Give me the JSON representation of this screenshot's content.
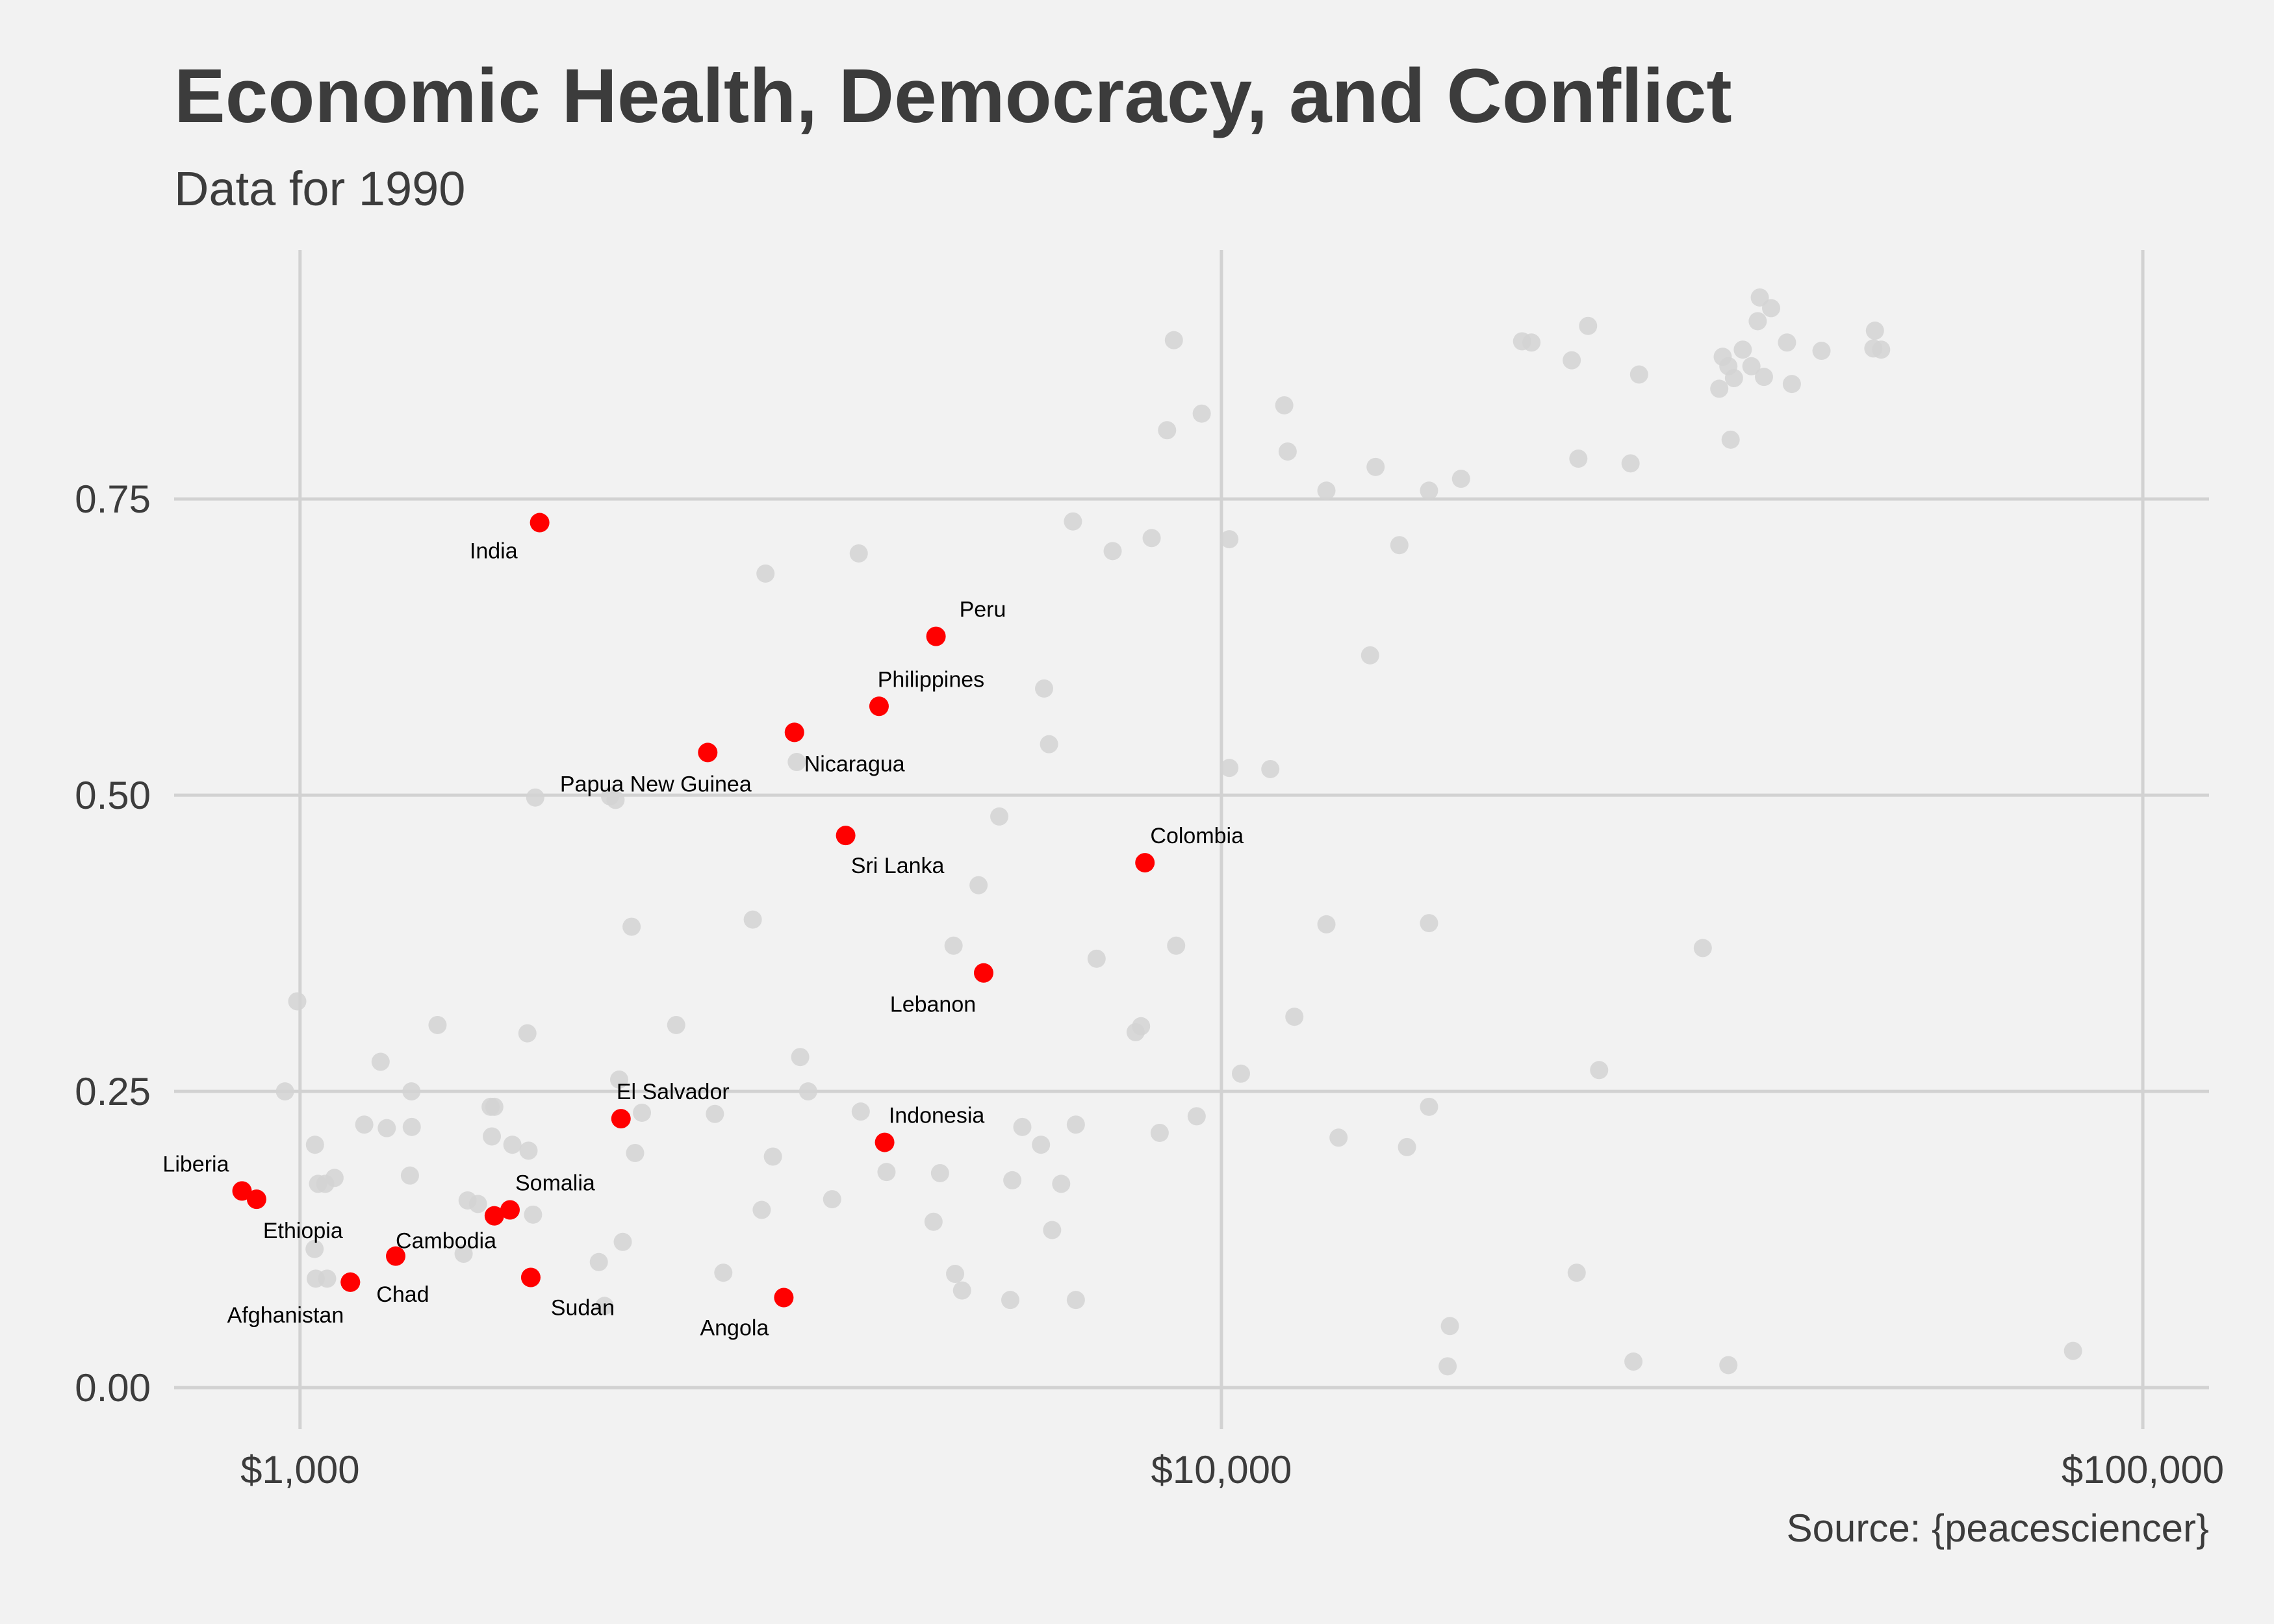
{
  "chart_data": {
    "type": "scatter",
    "title": "Economic Health, Democracy, and Conflict",
    "subtitle": "Data for 1990",
    "caption": "Source: {peacesciencer}",
    "xlabel": "",
    "ylabel": "",
    "x_scale": "log10",
    "xlim": [
      730,
      118000
    ],
    "ylim": [
      -0.035,
      0.96
    ],
    "x_ticks": [
      1000,
      10000,
      100000
    ],
    "x_tick_labels": [
      "$1,000",
      "$10,000",
      "$100,000"
    ],
    "y_ticks": [
      0,
      0.25,
      0.5,
      0.75
    ],
    "y_tick_labels": [
      "0.00",
      "0.25",
      "0.50",
      "0.75"
    ],
    "grid": true,
    "colors": {
      "background": "#f2f2f2",
      "grid": "#d2d2d2",
      "conflict": "#ff0000",
      "other": "#d3d3d3",
      "text": "#3c3c3c"
    },
    "series": [
      {
        "name": "",
        "color": "#d3d3d3",
        "points": [
          [
            993,
            0.326
          ],
          [
            963,
            0.25
          ],
          [
            1038,
            0.205
          ],
          [
            1046,
            0.172
          ],
          [
            1065,
            0.172
          ],
          [
            1090,
            0.177
          ],
          [
            1037,
            0.117
          ],
          [
            1040,
            0.092
          ],
          [
            1070,
            0.092
          ],
          [
            1174,
            0.222
          ],
          [
            1223,
            0.275
          ],
          [
            1242,
            0.219
          ],
          [
            1321,
            0.25
          ],
          [
            1322,
            0.22
          ],
          [
            1316,
            0.179
          ],
          [
            1410,
            0.306
          ],
          [
            1520,
            0.158
          ],
          [
            1560,
            0.155
          ],
          [
            1505,
            0.113
          ],
          [
            1610,
            0.237
          ],
          [
            1625,
            0.237
          ],
          [
            1615,
            0.212
          ],
          [
            1700,
            0.205
          ],
          [
            1770,
            0.2
          ],
          [
            1790,
            0.146
          ],
          [
            1765,
            0.299
          ],
          [
            1800,
            0.498
          ],
          [
            2170,
            0.499
          ],
          [
            2200,
            0.496
          ],
          [
            2290,
            0.389
          ],
          [
            2220,
            0.26
          ],
          [
            2350,
            0.232
          ],
          [
            2310,
            0.198
          ],
          [
            2240,
            0.123
          ],
          [
            2110,
            0.106
          ],
          [
            2140,
            0.069
          ],
          [
            2560,
            0.306
          ],
          [
            2820,
            0.231
          ],
          [
            2880,
            0.097
          ],
          [
            3100,
            0.395
          ],
          [
            3170,
            0.15
          ],
          [
            3260,
            0.195
          ],
          [
            3200,
            0.687
          ],
          [
            3460,
            0.528
          ],
          [
            3490,
            0.279
          ],
          [
            3560,
            0.25
          ],
          [
            3780,
            0.159
          ],
          [
            4060,
            0.233
          ],
          [
            4040,
            0.704
          ],
          [
            4330,
            0.182
          ],
          [
            4870,
            0.14
          ],
          [
            4950,
            0.181
          ],
          [
            5120,
            0.373
          ],
          [
            5140,
            0.096
          ],
          [
            5230,
            0.082
          ],
          [
            5450,
            0.424
          ],
          [
            5740,
            0.482
          ],
          [
            5930,
            0.175
          ],
          [
            5900,
            0.074
          ],
          [
            6080,
            0.22
          ],
          [
            6500,
            0.543
          ],
          [
            6550,
            0.133
          ],
          [
            6420,
            0.59
          ],
          [
            6370,
            0.205
          ],
          [
            6700,
            0.172
          ],
          [
            6950,
            0.222
          ],
          [
            6950,
            0.074
          ],
          [
            6900,
            0.731
          ],
          [
            7320,
            0.362
          ],
          [
            7620,
            0.706
          ],
          [
            8070,
            0.3
          ],
          [
            8180,
            0.305
          ],
          [
            8400,
            0.717
          ],
          [
            8570,
            0.215
          ],
          [
            8730,
            0.808
          ],
          [
            8880,
            0.884
          ],
          [
            8930,
            0.373
          ],
          [
            9520,
            0.822
          ],
          [
            9400,
            0.229
          ],
          [
            10200,
            0.716
          ],
          [
            10200,
            0.523
          ],
          [
            10500,
            0.265
          ],
          [
            11300,
            0.522
          ],
          [
            11700,
            0.829
          ],
          [
            11800,
            0.79
          ],
          [
            12000,
            0.313
          ],
          [
            13000,
            0.757
          ],
          [
            13000,
            0.391
          ],
          [
            13400,
            0.211
          ],
          [
            14500,
            0.618
          ],
          [
            14700,
            0.777
          ],
          [
            15600,
            0.711
          ],
          [
            15900,
            0.203
          ],
          [
            16800,
            0.757
          ],
          [
            16800,
            0.392
          ],
          [
            16800,
            0.237
          ],
          [
            18200,
            0.767
          ],
          [
            17700,
            0.052
          ],
          [
            17600,
            0.018
          ],
          [
            21200,
            0.883
          ],
          [
            21700,
            0.882
          ],
          [
            24000,
            0.867
          ],
          [
            24400,
            0.784
          ],
          [
            25000,
            0.896
          ],
          [
            24300,
            0.097
          ],
          [
            25700,
            0.268
          ],
          [
            27800,
            0.78
          ],
          [
            28400,
            0.855
          ],
          [
            28000,
            0.022
          ],
          [
            33300,
            0.371
          ],
          [
            34700,
            0.843
          ],
          [
            35000,
            0.87
          ],
          [
            35500,
            0.862
          ],
          [
            35700,
            0.8
          ],
          [
            36000,
            0.852
          ],
          [
            36800,
            0.876
          ],
          [
            37600,
            0.862
          ],
          [
            38200,
            0.9
          ],
          [
            38400,
            0.92
          ],
          [
            38800,
            0.853
          ],
          [
            39500,
            0.911
          ],
          [
            41100,
            0.882
          ],
          [
            41600,
            0.847
          ],
          [
            44800,
            0.875
          ],
          [
            35500,
            0.019
          ],
          [
            51200,
            0.892
          ],
          [
            51000,
            0.877
          ],
          [
            52000,
            0.876
          ],
          [
            84000,
            0.031
          ]
        ]
      },
      {
        "name": "",
        "color": "#ff0000",
        "points": [
          {
            "label": "India",
            "x": 1820,
            "y": 0.73
          },
          {
            "label": "Peru",
            "x": 4900,
            "y": 0.634
          },
          {
            "label": "Philippines",
            "x": 4250,
            "y": 0.575
          },
          {
            "label": "Nicaragua",
            "x": 3440,
            "y": 0.553
          },
          {
            "label": "Papua New Guinea",
            "x": 2770,
            "y": 0.536
          },
          {
            "label": "Sri Lanka",
            "x": 3910,
            "y": 0.466
          },
          {
            "label": "Colombia",
            "x": 8260,
            "y": 0.443
          },
          {
            "label": "Lebanon",
            "x": 5520,
            "y": 0.35
          },
          {
            "label": "El Salvador",
            "x": 2230,
            "y": 0.227
          },
          {
            "label": "Indonesia",
            "x": 4310,
            "y": 0.207
          },
          {
            "label": "Liberia",
            "x": 865,
            "y": 0.166
          },
          {
            "label": "Ethiopia",
            "x": 897,
            "y": 0.159
          },
          {
            "label": "Somalia",
            "x": 1690,
            "y": 0.15
          },
          {
            "label": "Cambodia",
            "x": 1270,
            "y": 0.111
          },
          {
            "label": "Afghanistan",
            "x": 1134,
            "y": 0.089
          },
          {
            "label": "Chad",
            "x": 1134,
            "y": 0.089
          },
          {
            "label": "Sudan",
            "x": 1780,
            "y": 0.093
          },
          {
            "label": "Angola",
            "x": 3350,
            "y": 0.076
          },
          {
            "label": "",
            "x": 1625,
            "y": 0.145
          }
        ]
      }
    ]
  }
}
